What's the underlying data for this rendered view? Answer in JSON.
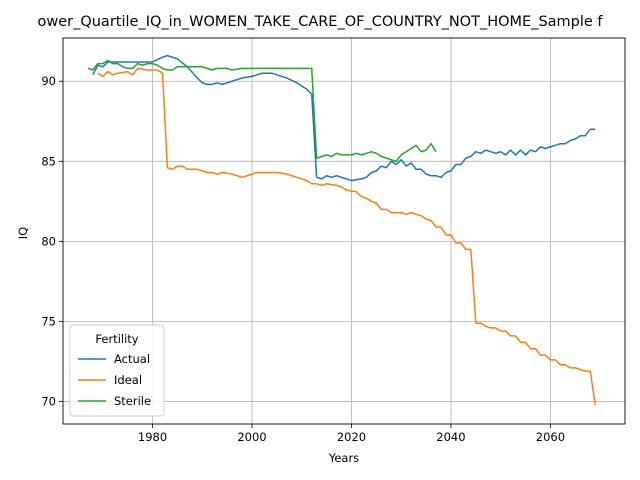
{
  "chart_data": {
    "type": "line",
    "title": "ower_Quartile_IQ_in_WOMEN_TAKE_CARE_OF_COUNTRY_NOT_HOME_Sample f",
    "xlabel": "Years",
    "ylabel": "IQ",
    "xlim": [
      1962,
      2075
    ],
    "ylim": [
      68.6,
      92.7
    ],
    "xticks": [
      1980,
      2000,
      2020,
      2040,
      2060
    ],
    "yticks": [
      70,
      75,
      80,
      85,
      90
    ],
    "grid": true,
    "legend": {
      "title": "Fertility",
      "position": "lower-left"
    },
    "series": [
      {
        "name": "Actual",
        "color": "#1f77b4",
        "points": [
          [
            1968,
            90.4
          ],
          [
            1969,
            91.0
          ],
          [
            1970,
            90.9
          ],
          [
            1971,
            91.2
          ],
          [
            1972,
            91.2
          ],
          [
            1974,
            91.2
          ],
          [
            1976,
            91.2
          ],
          [
            1978,
            91.2
          ],
          [
            1980,
            91.2
          ],
          [
            1982,
            91.5
          ],
          [
            1983,
            91.6
          ],
          [
            1985,
            91.4
          ],
          [
            1987,
            90.9
          ],
          [
            1989,
            90.2
          ],
          [
            1990,
            89.9
          ],
          [
            1991,
            89.8
          ],
          [
            1992,
            89.8
          ],
          [
            1993,
            89.9
          ],
          [
            1994,
            89.8
          ],
          [
            1996,
            90.0
          ],
          [
            1998,
            90.2
          ],
          [
            2000,
            90.3
          ],
          [
            2001,
            90.4
          ],
          [
            2002,
            90.5
          ],
          [
            2004,
            90.5
          ],
          [
            2005,
            90.4
          ],
          [
            2007,
            90.2
          ],
          [
            2009,
            89.9
          ],
          [
            2010,
            89.7
          ],
          [
            2011,
            89.5
          ],
          [
            2012,
            89.2
          ],
          [
            2013,
            84.0
          ],
          [
            2014,
            83.9
          ],
          [
            2015,
            84.1
          ],
          [
            2016,
            84.0
          ],
          [
            2017,
            84.1
          ],
          [
            2018,
            84.0
          ],
          [
            2020,
            83.8
          ],
          [
            2022,
            83.9
          ],
          [
            2023,
            84.0
          ],
          [
            2024,
            84.3
          ],
          [
            2025,
            84.4
          ],
          [
            2026,
            84.7
          ],
          [
            2027,
            84.6
          ],
          [
            2028,
            85.0
          ],
          [
            2029,
            84.8
          ],
          [
            2030,
            85.1
          ],
          [
            2031,
            84.7
          ],
          [
            2032,
            84.9
          ],
          [
            2033,
            84.5
          ],
          [
            2034,
            84.5
          ],
          [
            2035,
            84.2
          ],
          [
            2036,
            84.1
          ],
          [
            2037,
            84.1
          ],
          [
            2038,
            84.0
          ],
          [
            2039,
            84.3
          ],
          [
            2040,
            84.4
          ],
          [
            2041,
            84.8
          ],
          [
            2042,
            84.8
          ],
          [
            2043,
            85.2
          ],
          [
            2044,
            85.3
          ],
          [
            2045,
            85.6
          ],
          [
            2046,
            85.5
          ],
          [
            2047,
            85.7
          ],
          [
            2048,
            85.6
          ],
          [
            2049,
            85.5
          ],
          [
            2050,
            85.6
          ],
          [
            2051,
            85.4
          ],
          [
            2052,
            85.7
          ],
          [
            2053,
            85.4
          ],
          [
            2054,
            85.7
          ],
          [
            2055,
            85.4
          ],
          [
            2056,
            85.7
          ],
          [
            2057,
            85.6
          ],
          [
            2058,
            85.9
          ],
          [
            2059,
            85.8
          ],
          [
            2060,
            85.9
          ],
          [
            2061,
            86.0
          ],
          [
            2062,
            86.1
          ],
          [
            2063,
            86.1
          ],
          [
            2064,
            86.3
          ],
          [
            2065,
            86.4
          ],
          [
            2066,
            86.6
          ],
          [
            2067,
            86.6
          ],
          [
            2068,
            87.0
          ],
          [
            2069,
            87.0
          ]
        ]
      },
      {
        "name": "Ideal",
        "color": "#ff7f0e",
        "points": [
          [
            1969,
            90.5
          ],
          [
            1970,
            90.3
          ],
          [
            1971,
            90.6
          ],
          [
            1972,
            90.4
          ],
          [
            1973,
            90.5
          ],
          [
            1975,
            90.6
          ],
          [
            1976,
            90.4
          ],
          [
            1977,
            90.8
          ],
          [
            1979,
            90.7
          ],
          [
            1981,
            90.7
          ],
          [
            1982,
            90.5
          ],
          [
            1983,
            84.6
          ],
          [
            1984,
            84.5
          ],
          [
            1985,
            84.7
          ],
          [
            1986,
            84.7
          ],
          [
            1987,
            84.5
          ],
          [
            1989,
            84.5
          ],
          [
            1990,
            84.4
          ],
          [
            1991,
            84.3
          ],
          [
            1992,
            84.3
          ],
          [
            1993,
            84.2
          ],
          [
            1994,
            84.3
          ],
          [
            1996,
            84.2
          ],
          [
            1998,
            84.0
          ],
          [
            2000,
            84.2
          ],
          [
            2001,
            84.3
          ],
          [
            2003,
            84.3
          ],
          [
            2005,
            84.3
          ],
          [
            2007,
            84.2
          ],
          [
            2009,
            84.0
          ],
          [
            2010,
            83.9
          ],
          [
            2011,
            83.8
          ],
          [
            2012,
            83.6
          ],
          [
            2013,
            83.6
          ],
          [
            2014,
            83.5
          ],
          [
            2015,
            83.6
          ],
          [
            2017,
            83.5
          ],
          [
            2018,
            83.4
          ],
          [
            2019,
            83.2
          ],
          [
            2021,
            83.1
          ],
          [
            2022,
            82.8
          ],
          [
            2023,
            82.7
          ],
          [
            2024,
            82.5
          ],
          [
            2025,
            82.4
          ],
          [
            2026,
            82.0
          ],
          [
            2027,
            82.0
          ],
          [
            2028,
            81.8
          ],
          [
            2029,
            81.8
          ],
          [
            2030,
            81.8
          ],
          [
            2031,
            81.7
          ],
          [
            2032,
            81.8
          ],
          [
            2033,
            81.7
          ],
          [
            2034,
            81.6
          ],
          [
            2035,
            81.4
          ],
          [
            2036,
            81.3
          ],
          [
            2037,
            80.9
          ],
          [
            2038,
            80.9
          ],
          [
            2039,
            80.4
          ],
          [
            2040,
            80.4
          ],
          [
            2041,
            79.9
          ],
          [
            2042,
            79.9
          ],
          [
            2043,
            79.5
          ],
          [
            2044,
            79.5
          ],
          [
            2045,
            74.9
          ],
          [
            2046,
            74.9
          ],
          [
            2047,
            74.7
          ],
          [
            2048,
            74.6
          ],
          [
            2049,
            74.6
          ],
          [
            2050,
            74.4
          ],
          [
            2051,
            74.4
          ],
          [
            2052,
            74.1
          ],
          [
            2053,
            74.1
          ],
          [
            2054,
            73.7
          ],
          [
            2055,
            73.7
          ],
          [
            2056,
            73.3
          ],
          [
            2057,
            73.3
          ],
          [
            2058,
            72.9
          ],
          [
            2059,
            72.9
          ],
          [
            2060,
            72.6
          ],
          [
            2061,
            72.6
          ],
          [
            2062,
            72.3
          ],
          [
            2063,
            72.3
          ],
          [
            2064,
            72.1
          ],
          [
            2065,
            72.1
          ],
          [
            2066,
            72.0
          ],
          [
            2067,
            71.9
          ],
          [
            2068,
            71.9
          ],
          [
            2069,
            69.8
          ]
        ]
      },
      {
        "name": "Sterile",
        "color": "#2ca02c",
        "points": [
          [
            1967,
            90.8
          ],
          [
            1968,
            90.7
          ],
          [
            1969,
            91.1
          ],
          [
            1970,
            91.1
          ],
          [
            1971,
            91.3
          ],
          [
            1972,
            91.1
          ],
          [
            1973,
            91.1
          ],
          [
            1974,
            90.9
          ],
          [
            1975,
            90.8
          ],
          [
            1976,
            90.8
          ],
          [
            1977,
            91.1
          ],
          [
            1978,
            91.0
          ],
          [
            1979,
            91.1
          ],
          [
            1980,
            91.1
          ],
          [
            1981,
            91.0
          ],
          [
            1982,
            90.8
          ],
          [
            1983,
            90.7
          ],
          [
            1984,
            90.7
          ],
          [
            1985,
            90.9
          ],
          [
            1987,
            90.9
          ],
          [
            1989,
            90.9
          ],
          [
            1990,
            90.9
          ],
          [
            1991,
            90.8
          ],
          [
            1992,
            90.7
          ],
          [
            1993,
            90.8
          ],
          [
            1995,
            90.8
          ],
          [
            1996,
            90.7
          ],
          [
            1998,
            90.8
          ],
          [
            2000,
            90.8
          ],
          [
            2003,
            90.8
          ],
          [
            2006,
            90.8
          ],
          [
            2009,
            90.8
          ],
          [
            2012,
            90.8
          ],
          [
            2013,
            85.2
          ],
          [
            2014,
            85.3
          ],
          [
            2015,
            85.4
          ],
          [
            2016,
            85.3
          ],
          [
            2017,
            85.5
          ],
          [
            2018,
            85.4
          ],
          [
            2020,
            85.4
          ],
          [
            2021,
            85.5
          ],
          [
            2022,
            85.4
          ],
          [
            2023,
            85.5
          ],
          [
            2024,
            85.6
          ],
          [
            2025,
            85.5
          ],
          [
            2026,
            85.3
          ],
          [
            2027,
            85.2
          ],
          [
            2028,
            85.1
          ],
          [
            2029,
            85.0
          ],
          [
            2030,
            85.4
          ],
          [
            2031,
            85.6
          ],
          [
            2032,
            85.8
          ],
          [
            2033,
            86.0
          ],
          [
            2034,
            85.6
          ],
          [
            2035,
            85.7
          ],
          [
            2036,
            86.1
          ],
          [
            2037,
            85.6
          ]
        ]
      }
    ]
  }
}
